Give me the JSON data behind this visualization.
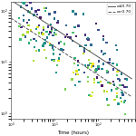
{
  "title": "",
  "xlabel": "Time (hours)",
  "ylabel": "",
  "xscale": "log",
  "yscale": "log",
  "xlim": [
    1,
    700
  ],
  "ylim": [
    0.8,
    150
  ],
  "background_color": "#ffffff",
  "legend_labels": [
    "α≤0.70",
    "α>0.70"
  ],
  "line1_color": "#555555",
  "line2_color": "#555555",
  "colormap": "viridis",
  "seed": 42,
  "n_points": 220,
  "line1_slope": -0.55,
  "line1_intercept": 2.2,
  "line2_slope": -0.55,
  "line2_intercept": 1.85
}
